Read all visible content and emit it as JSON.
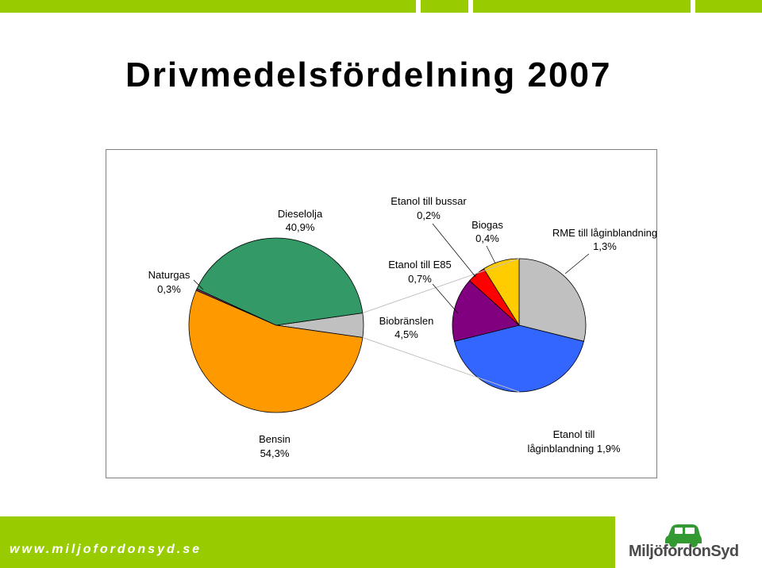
{
  "header": {
    "title": "Drivmedelsfördelning 2007"
  },
  "colors": {
    "brand_green": "#99cc00",
    "bensin": "#ff9900",
    "dieselolja": "#339966",
    "naturgas": "#993366",
    "biobranslen": "#c0c0c0",
    "etanol_laginblandning": "#3366ff",
    "etanol_e85": "#800080",
    "etanol_bussar": "#ff0000",
    "biogas": "#ffcc00",
    "rme": "#c0c0c0"
  },
  "chart_data": {
    "type": "pie",
    "subtype": "pie-of-pie",
    "title": "Drivmedelsfördelning 2007",
    "main_pie": [
      {
        "label": "Bensin",
        "value_text": "54,3%",
        "value": 54.3,
        "color": "#ff9900"
      },
      {
        "label": "Naturgas",
        "value_text": "0,3%",
        "value": 0.3,
        "color": "#993366"
      },
      {
        "label": "Dieselolja",
        "value_text": "40,9%",
        "value": 40.9,
        "color": "#339966"
      },
      {
        "label": "Biobränslen",
        "value_text": "4,5%",
        "value": 4.5,
        "color": "#c0c0c0"
      }
    ],
    "secondary_pie": [
      {
        "label": "Etanol till låginblandning",
        "value_text": "1,9%",
        "value": 1.9,
        "color": "#3366ff"
      },
      {
        "label": "Etanol till E85",
        "value_text": "0,7%",
        "value": 0.7,
        "color": "#800080"
      },
      {
        "label": "Etanol till bussar",
        "value_text": "0,2%",
        "value": 0.2,
        "color": "#ff0000"
      },
      {
        "label": "Biogas",
        "value_text": "0,4%",
        "value": 0.4,
        "color": "#ffcc00"
      },
      {
        "label": "RME till låginblandning",
        "value_text": "1,3%",
        "value": 1.3,
        "color": "#c0c0c0"
      }
    ],
    "legend": "none"
  },
  "footer": {
    "url": "www.miljofordonsyd.se",
    "logo_text": "MiljöfordonSyd"
  }
}
